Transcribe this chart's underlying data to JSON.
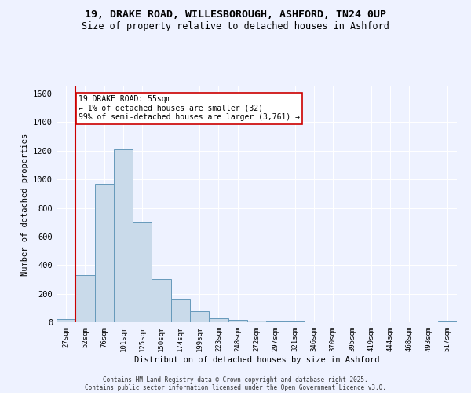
{
  "title_line1": "19, DRAKE ROAD, WILLESBOROUGH, ASHFORD, TN24 0UP",
  "title_line2": "Size of property relative to detached houses in Ashford",
  "xlabel": "Distribution of detached houses by size in Ashford",
  "ylabel": "Number of detached properties",
  "bar_labels": [
    "27sqm",
    "52sqm",
    "76sqm",
    "101sqm",
    "125sqm",
    "150sqm",
    "174sqm",
    "199sqm",
    "223sqm",
    "248sqm",
    "272sqm",
    "297sqm",
    "321sqm",
    "346sqm",
    "370sqm",
    "395sqm",
    "419sqm",
    "444sqm",
    "468sqm",
    "493sqm",
    "517sqm"
  ],
  "bar_values": [
    20,
    330,
    970,
    1210,
    700,
    305,
    160,
    75,
    25,
    15,
    10,
    5,
    3,
    2,
    1,
    1,
    0,
    0,
    0,
    0,
    8
  ],
  "bar_color": "#c9daea",
  "bar_edge_color": "#6699bb",
  "annotation_box_text": "19 DRAKE ROAD: 55sqm\n← 1% of detached houses are smaller (32)\n99% of semi-detached houses are larger (3,761) →",
  "vline_color": "#cc0000",
  "vline_x": 0.5,
  "ylim": [
    0,
    1650
  ],
  "yticks": [
    0,
    200,
    400,
    600,
    800,
    1000,
    1200,
    1400,
    1600
  ],
  "bg_color": "#eef2ff",
  "grid_color": "#ffffff",
  "footer_line1": "Contains HM Land Registry data © Crown copyright and database right 2025.",
  "footer_line2": "Contains public sector information licensed under the Open Government Licence v3.0."
}
